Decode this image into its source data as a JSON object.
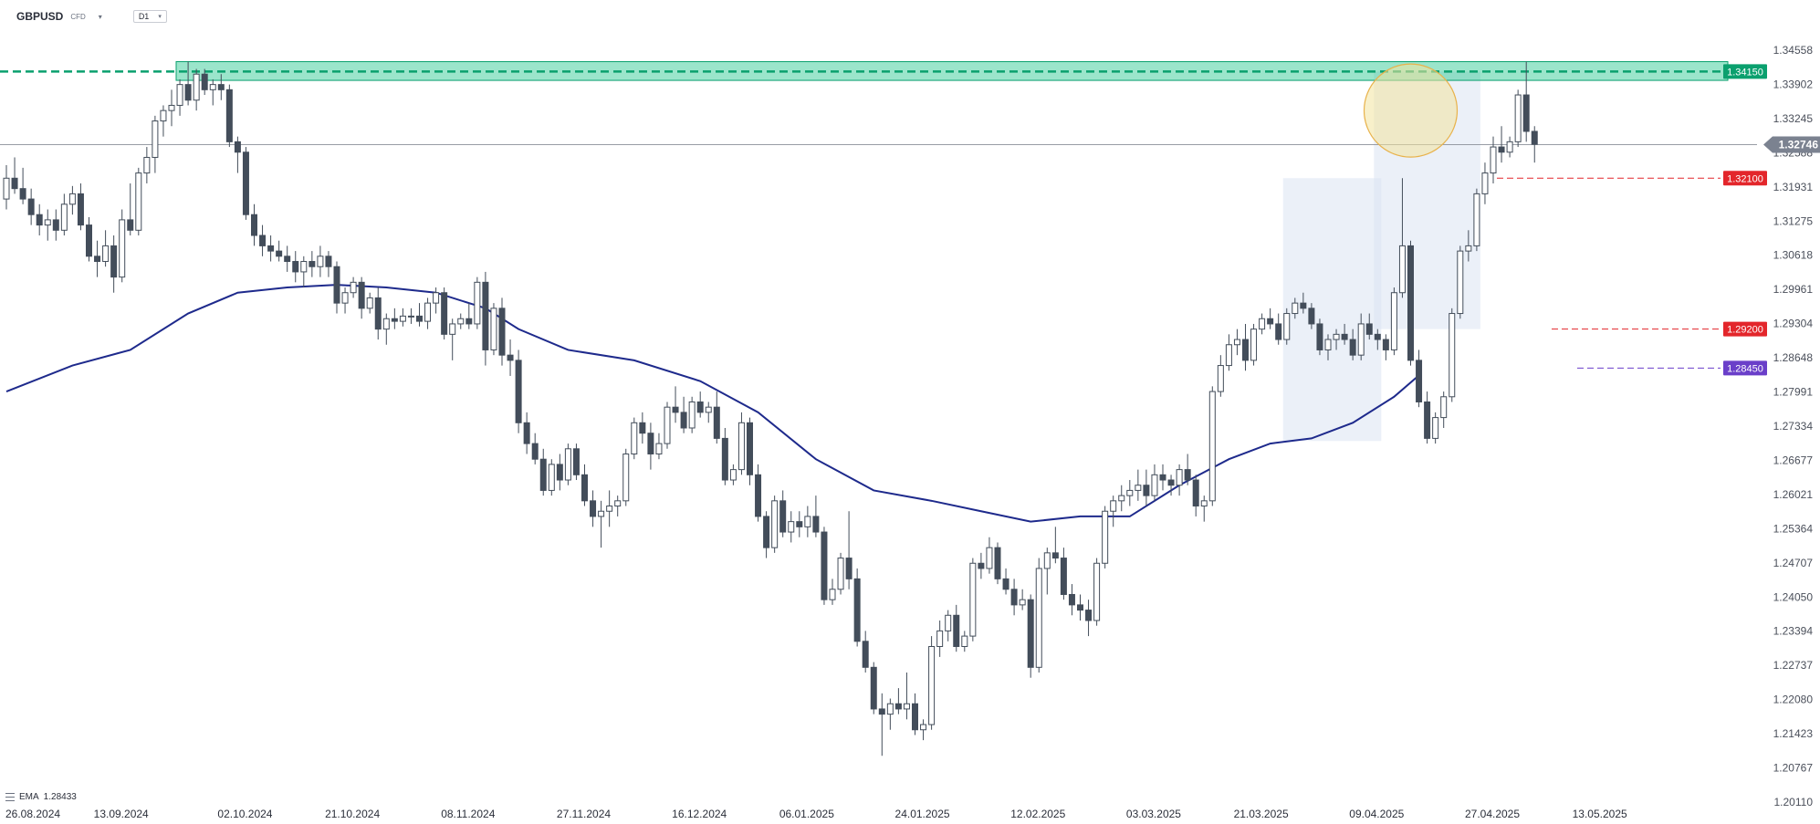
{
  "header": {
    "symbol": "GBPUSD",
    "instrument_type": "CFD",
    "timeframe": "D1"
  },
  "indicator_legend": {
    "label": "EMA",
    "value": "1.28433"
  },
  "colors": {
    "up_body": "#ffffff",
    "down_body": "#434d5a",
    "wick": "#434d5a",
    "ema": "#1e2a8c",
    "resistance": "#0aa06e",
    "zone": "#21c58b",
    "red_label": "#e3262b",
    "purple_label": "#6a3fc9",
    "price_tag": "#7b8290",
    "range_box": "#dbe4f3",
    "circle": "#f2e49e",
    "circle_stroke": "#e8b24b"
  },
  "chart_data": {
    "type": "candlestick",
    "symbol": "GBPUSD",
    "timeframe": "D1",
    "ylim": [
      1.2011,
      1.3456
    ],
    "y_ticks": [
      "1.34558",
      "1.33902",
      "1.33245",
      "1.32588",
      "1.31931",
      "1.31275",
      "1.30618",
      "1.29961",
      "1.29304",
      "1.28648",
      "1.27991",
      "1.27334",
      "1.26677",
      "1.26021",
      "1.25364",
      "1.24707",
      "1.24050",
      "1.23394",
      "1.22737",
      "1.22080",
      "1.21423",
      "1.20767",
      "1.20110"
    ],
    "x_ticks": [
      {
        "label": "26.08.2024",
        "bar": 0
      },
      {
        "label": "13.09.2024",
        "bar": 14
      },
      {
        "label": "02.10.2024",
        "bar": 29
      },
      {
        "label": "21.10.2024",
        "bar": 42
      },
      {
        "label": "08.11.2024",
        "bar": 56
      },
      {
        "label": "27.11.2024",
        "bar": 70
      },
      {
        "label": "16.12.2024",
        "bar": 84
      },
      {
        "label": "06.01.2025",
        "bar": 97
      },
      {
        "label": "24.01.2025",
        "bar": 111
      },
      {
        "label": "12.02.2025",
        "bar": 125
      },
      {
        "label": "03.03.2025",
        "bar": 139
      },
      {
        "label": "21.03.2025",
        "bar": 152
      },
      {
        "label": "09.04.2025",
        "bar": 166
      },
      {
        "label": "27.04.2025",
        "bar": 180
      },
      {
        "label": "13.05.2025",
        "bar": 193
      }
    ],
    "ohlc": [
      [
        1.317,
        1.3235,
        1.315,
        1.321
      ],
      [
        1.321,
        1.325,
        1.318,
        1.319
      ],
      [
        1.319,
        1.323,
        1.316,
        1.317
      ],
      [
        1.317,
        1.319,
        1.312,
        1.314
      ],
      [
        1.314,
        1.316,
        1.31,
        1.312
      ],
      [
        1.312,
        1.315,
        1.309,
        1.313
      ],
      [
        1.313,
        1.315,
        1.309,
        1.311
      ],
      [
        1.311,
        1.318,
        1.31,
        1.316
      ],
      [
        1.316,
        1.3195,
        1.314,
        1.318
      ],
      [
        1.318,
        1.32,
        1.311,
        1.312
      ],
      [
        1.312,
        1.3135,
        1.305,
        1.306
      ],
      [
        1.306,
        1.309,
        1.302,
        1.305
      ],
      [
        1.305,
        1.311,
        1.304,
        1.308
      ],
      [
        1.308,
        1.31,
        1.299,
        1.302
      ],
      [
        1.302,
        1.315,
        1.301,
        1.313
      ],
      [
        1.313,
        1.32,
        1.31,
        1.311
      ],
      [
        1.311,
        1.323,
        1.31,
        1.322
      ],
      [
        1.322,
        1.327,
        1.32,
        1.325
      ],
      [
        1.325,
        1.333,
        1.322,
        1.332
      ],
      [
        1.332,
        1.335,
        1.329,
        1.334
      ],
      [
        1.334,
        1.338,
        1.331,
        1.335
      ],
      [
        1.335,
        1.34,
        1.333,
        1.339
      ],
      [
        1.339,
        1.3434,
        1.335,
        1.336
      ],
      [
        1.336,
        1.342,
        1.334,
        1.341
      ],
      [
        1.341,
        1.342,
        1.337,
        1.338
      ],
      [
        1.338,
        1.34,
        1.335,
        1.339
      ],
      [
        1.339,
        1.341,
        1.336,
        1.338
      ],
      [
        1.338,
        1.339,
        1.327,
        1.328
      ],
      [
        1.328,
        1.329,
        1.322,
        1.326
      ],
      [
        1.326,
        1.327,
        1.313,
        1.314
      ],
      [
        1.314,
        1.316,
        1.308,
        1.31
      ],
      [
        1.31,
        1.312,
        1.306,
        1.308
      ],
      [
        1.308,
        1.31,
        1.305,
        1.307
      ],
      [
        1.307,
        1.309,
        1.305,
        1.306
      ],
      [
        1.306,
        1.308,
        1.303,
        1.305
      ],
      [
        1.305,
        1.307,
        1.301,
        1.303
      ],
      [
        1.303,
        1.306,
        1.3,
        1.305
      ],
      [
        1.305,
        1.307,
        1.302,
        1.304
      ],
      [
        1.304,
        1.308,
        1.302,
        1.306
      ],
      [
        1.306,
        1.307,
        1.302,
        1.304
      ],
      [
        1.304,
        1.305,
        1.295,
        1.297
      ],
      [
        1.297,
        1.3,
        1.295,
        1.299
      ],
      [
        1.299,
        1.302,
        1.298,
        1.301
      ],
      [
        1.301,
        1.302,
        1.294,
        1.296
      ],
      [
        1.296,
        1.299,
        1.295,
        1.298
      ],
      [
        1.298,
        1.3,
        1.29,
        1.292
      ],
      [
        1.292,
        1.295,
        1.289,
        1.294
      ],
      [
        1.294,
        1.296,
        1.292,
        1.2935
      ],
      [
        1.2935,
        1.296,
        1.2925,
        1.2945
      ],
      [
        1.2945,
        1.296,
        1.293,
        1.2945
      ],
      [
        1.2945,
        1.297,
        1.2925,
        1.2935
      ],
      [
        1.2935,
        1.298,
        1.292,
        1.297
      ],
      [
        1.297,
        1.3,
        1.295,
        1.299
      ],
      [
        1.299,
        1.3,
        1.29,
        1.291
      ],
      [
        1.291,
        1.294,
        1.286,
        1.293
      ],
      [
        1.293,
        1.295,
        1.292,
        1.294
      ],
      [
        1.294,
        1.297,
        1.292,
        1.293
      ],
      [
        1.293,
        1.302,
        1.292,
        1.301
      ],
      [
        1.301,
        1.303,
        1.285,
        1.288
      ],
      [
        1.288,
        1.297,
        1.287,
        1.296
      ],
      [
        1.296,
        1.298,
        1.285,
        1.287
      ],
      [
        1.287,
        1.29,
        1.283,
        1.286
      ],
      [
        1.286,
        1.288,
        1.272,
        1.274
      ],
      [
        1.274,
        1.276,
        1.268,
        1.27
      ],
      [
        1.27,
        1.272,
        1.266,
        1.267
      ],
      [
        1.267,
        1.269,
        1.26,
        1.261
      ],
      [
        1.261,
        1.267,
        1.26,
        1.266
      ],
      [
        1.266,
        1.268,
        1.261,
        1.263
      ],
      [
        1.263,
        1.27,
        1.262,
        1.269
      ],
      [
        1.269,
        1.27,
        1.263,
        1.264
      ],
      [
        1.264,
        1.266,
        1.258,
        1.259
      ],
      [
        1.259,
        1.261,
        1.254,
        1.256
      ],
      [
        1.256,
        1.259,
        1.25,
        1.257
      ],
      [
        1.257,
        1.261,
        1.254,
        1.258
      ],
      [
        1.258,
        1.26,
        1.256,
        1.259
      ],
      [
        1.259,
        1.269,
        1.258,
        1.268
      ],
      [
        1.268,
        1.275,
        1.267,
        1.274
      ],
      [
        1.274,
        1.276,
        1.27,
        1.272
      ],
      [
        1.272,
        1.274,
        1.265,
        1.268
      ],
      [
        1.268,
        1.272,
        1.267,
        1.27
      ],
      [
        1.27,
        1.278,
        1.269,
        1.277
      ],
      [
        1.277,
        1.281,
        1.274,
        1.276
      ],
      [
        1.276,
        1.279,
        1.272,
        1.273
      ],
      [
        1.273,
        1.279,
        1.272,
        1.278
      ],
      [
        1.278,
        1.28,
        1.275,
        1.276
      ],
      [
        1.276,
        1.278,
        1.274,
        1.277
      ],
      [
        1.277,
        1.28,
        1.27,
        1.271
      ],
      [
        1.271,
        1.273,
        1.262,
        1.263
      ],
      [
        1.263,
        1.266,
        1.262,
        1.265
      ],
      [
        1.265,
        1.276,
        1.264,
        1.274
      ],
      [
        1.274,
        1.275,
        1.262,
        1.264
      ],
      [
        1.264,
        1.266,
        1.255,
        1.256
      ],
      [
        1.256,
        1.257,
        1.248,
        1.25
      ],
      [
        1.25,
        1.26,
        1.249,
        1.259
      ],
      [
        1.259,
        1.261,
        1.252,
        1.253
      ],
      [
        1.253,
        1.257,
        1.251,
        1.255
      ],
      [
        1.255,
        1.257,
        1.252,
        1.254
      ],
      [
        1.254,
        1.258,
        1.252,
        1.256
      ],
      [
        1.256,
        1.26,
        1.252,
        1.253
      ],
      [
        1.253,
        1.254,
        1.239,
        1.24
      ],
      [
        1.24,
        1.244,
        1.239,
        1.242
      ],
      [
        1.242,
        1.249,
        1.241,
        1.248
      ],
      [
        1.248,
        1.257,
        1.242,
        1.244
      ],
      [
        1.244,
        1.246,
        1.231,
        1.232
      ],
      [
        1.232,
        1.234,
        1.226,
        1.227
      ],
      [
        1.227,
        1.228,
        1.218,
        1.219
      ],
      [
        1.219,
        1.222,
        1.21,
        1.218
      ],
      [
        1.218,
        1.221,
        1.215,
        1.22
      ],
      [
        1.22,
        1.223,
        1.218,
        1.219
      ],
      [
        1.219,
        1.226,
        1.217,
        1.22
      ],
      [
        1.22,
        1.222,
        1.214,
        1.215
      ],
      [
        1.215,
        1.217,
        1.213,
        1.216
      ],
      [
        1.216,
        1.233,
        1.215,
        1.231
      ],
      [
        1.231,
        1.236,
        1.229,
        1.234
      ],
      [
        1.234,
        1.238,
        1.232,
        1.237
      ],
      [
        1.237,
        1.239,
        1.23,
        1.231
      ],
      [
        1.231,
        1.234,
        1.23,
        1.233
      ],
      [
        1.233,
        1.248,
        1.232,
        1.247
      ],
      [
        1.247,
        1.249,
        1.244,
        1.246
      ],
      [
        1.246,
        1.252,
        1.245,
        1.25
      ],
      [
        1.25,
        1.251,
        1.243,
        1.244
      ],
      [
        1.244,
        1.246,
        1.241,
        1.242
      ],
      [
        1.242,
        1.244,
        1.237,
        1.239
      ],
      [
        1.239,
        1.242,
        1.238,
        1.24
      ],
      [
        1.24,
        1.241,
        1.225,
        1.227
      ],
      [
        1.227,
        1.248,
        1.226,
        1.246
      ],
      [
        1.246,
        1.25,
        1.241,
        1.249
      ],
      [
        1.249,
        1.254,
        1.247,
        1.248
      ],
      [
        1.248,
        1.25,
        1.24,
        1.241
      ],
      [
        1.241,
        1.243,
        1.237,
        1.239
      ],
      [
        1.239,
        1.241,
        1.236,
        1.238
      ],
      [
        1.238,
        1.24,
        1.233,
        1.236
      ],
      [
        1.236,
        1.248,
        1.235,
        1.247
      ],
      [
        1.247,
        1.258,
        1.246,
        1.257
      ],
      [
        1.257,
        1.26,
        1.254,
        1.259
      ],
      [
        1.259,
        1.262,
        1.257,
        1.26
      ],
      [
        1.26,
        1.263,
        1.258,
        1.261
      ],
      [
        1.261,
        1.265,
        1.259,
        1.262
      ],
      [
        1.262,
        1.265,
        1.258,
        1.26
      ],
      [
        1.26,
        1.266,
        1.259,
        1.264
      ],
      [
        1.264,
        1.266,
        1.261,
        1.263
      ],
      [
        1.263,
        1.264,
        1.26,
        1.262
      ],
      [
        1.262,
        1.266,
        1.26,
        1.265
      ],
      [
        1.265,
        1.268,
        1.262,
        1.263
      ],
      [
        1.263,
        1.264,
        1.256,
        1.258
      ],
      [
        1.258,
        1.26,
        1.255,
        1.259
      ],
      [
        1.259,
        1.281,
        1.258,
        1.28
      ],
      [
        1.28,
        1.287,
        1.279,
        1.285
      ],
      [
        1.285,
        1.291,
        1.284,
        1.289
      ],
      [
        1.289,
        1.292,
        1.287,
        1.29
      ],
      [
        1.29,
        1.293,
        1.284,
        1.286
      ],
      [
        1.286,
        1.293,
        1.285,
        1.292
      ],
      [
        1.292,
        1.295,
        1.291,
        1.294
      ],
      [
        1.294,
        1.296,
        1.292,
        1.293
      ],
      [
        1.293,
        1.295,
        1.289,
        1.29
      ],
      [
        1.29,
        1.296,
        1.289,
        1.295
      ],
      [
        1.295,
        1.298,
        1.294,
        1.297
      ],
      [
        1.297,
        1.299,
        1.295,
        1.296
      ],
      [
        1.296,
        1.297,
        1.292,
        1.293
      ],
      [
        1.293,
        1.294,
        1.287,
        1.288
      ],
      [
        1.288,
        1.291,
        1.286,
        1.29
      ],
      [
        1.29,
        1.292,
        1.288,
        1.291
      ],
      [
        1.291,
        1.293,
        1.289,
        1.29
      ],
      [
        1.29,
        1.292,
        1.286,
        1.287
      ],
      [
        1.287,
        1.295,
        1.286,
        1.293
      ],
      [
        1.293,
        1.295,
        1.29,
        1.291
      ],
      [
        1.291,
        1.292,
        1.288,
        1.29
      ],
      [
        1.29,
        1.291,
        1.286,
        1.288
      ],
      [
        1.288,
        1.3,
        1.287,
        1.299
      ],
      [
        1.299,
        1.321,
        1.298,
        1.308
      ],
      [
        1.308,
        1.309,
        1.285,
        1.286
      ],
      [
        1.286,
        1.288,
        1.277,
        1.278
      ],
      [
        1.278,
        1.28,
        1.27,
        1.271
      ],
      [
        1.271,
        1.276,
        1.27,
        1.275
      ],
      [
        1.275,
        1.28,
        1.273,
        1.279
      ],
      [
        1.279,
        1.296,
        1.278,
        1.295
      ],
      [
        1.295,
        1.308,
        1.294,
        1.307
      ],
      [
        1.307,
        1.311,
        1.305,
        1.308
      ],
      [
        1.308,
        1.319,
        1.307,
        1.318
      ],
      [
        1.318,
        1.324,
        1.316,
        1.322
      ],
      [
        1.322,
        1.329,
        1.32,
        1.327
      ],
      [
        1.327,
        1.331,
        1.324,
        1.326
      ],
      [
        1.326,
        1.329,
        1.325,
        1.328
      ],
      [
        1.328,
        1.338,
        1.327,
        1.337
      ],
      [
        1.337,
        1.3434,
        1.328,
        1.33
      ],
      [
        1.33,
        1.331,
        1.324,
        1.3275
      ]
    ],
    "ema_label": "EMA",
    "ema_period_value": 1.28433,
    "ema_points": [
      [
        0,
        1.28
      ],
      [
        8,
        1.285
      ],
      [
        15,
        1.288
      ],
      [
        22,
        1.295
      ],
      [
        28,
        1.299
      ],
      [
        34,
        1.3
      ],
      [
        40,
        1.3005
      ],
      [
        46,
        1.3
      ],
      [
        52,
        1.299
      ],
      [
        58,
        1.296
      ],
      [
        62,
        1.292
      ],
      [
        68,
        1.288
      ],
      [
        76,
        1.286
      ],
      [
        84,
        1.282
      ],
      [
        91,
        1.276
      ],
      [
        98,
        1.267
      ],
      [
        105,
        1.261
      ],
      [
        112,
        1.259
      ],
      [
        118,
        1.257
      ],
      [
        124,
        1.255
      ],
      [
        130,
        1.256
      ],
      [
        136,
        1.256
      ],
      [
        142,
        1.262
      ],
      [
        148,
        1.267
      ],
      [
        153,
        1.27
      ],
      [
        158,
        1.271
      ],
      [
        163,
        1.274
      ],
      [
        168,
        1.279
      ],
      [
        171,
        1.2831
      ]
    ],
    "resistance_zone": [
      1.3398,
      1.3434
    ],
    "horizontal_levels": [
      {
        "label": "1.34150",
        "value": 1.3415,
        "style": "dashed-green"
      },
      {
        "label": "1.32100",
        "value": 1.321,
        "style": "dashed-red"
      },
      {
        "label": "1.29200",
        "value": 1.292,
        "style": "dashed-red"
      },
      {
        "label": "1.28450",
        "value": 1.2845,
        "style": "dashed-purple"
      }
    ],
    "last_price": {
      "label": "1.32746",
      "value": 1.32746
    },
    "range_boxes": [
      {
        "from_bar": 155,
        "to_bar": 166,
        "low": 1.2705,
        "high": 1.321
      },
      {
        "from_bar": 166,
        "to_bar": 178,
        "low": 1.292,
        "high": 1.3415
      }
    ],
    "highlight_circle": {
      "bar": 170,
      "value": 1.334
    }
  }
}
